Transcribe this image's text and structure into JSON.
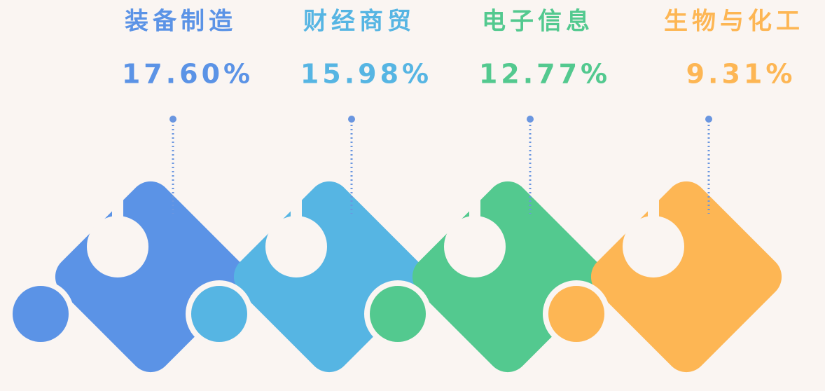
{
  "items": [
    {
      "label": "装备制造",
      "value": "17.60%",
      "color": "#5b93e6"
    },
    {
      "label": "财经商贸",
      "value": "15.98%",
      "color": "#56b5e3"
    },
    {
      "label": "电子信息",
      "value": "12.77%",
      "color": "#53c98f"
    },
    {
      "label": "生物与化工",
      "value": "9.31%",
      "color": "#fdb654"
    }
  ]
}
